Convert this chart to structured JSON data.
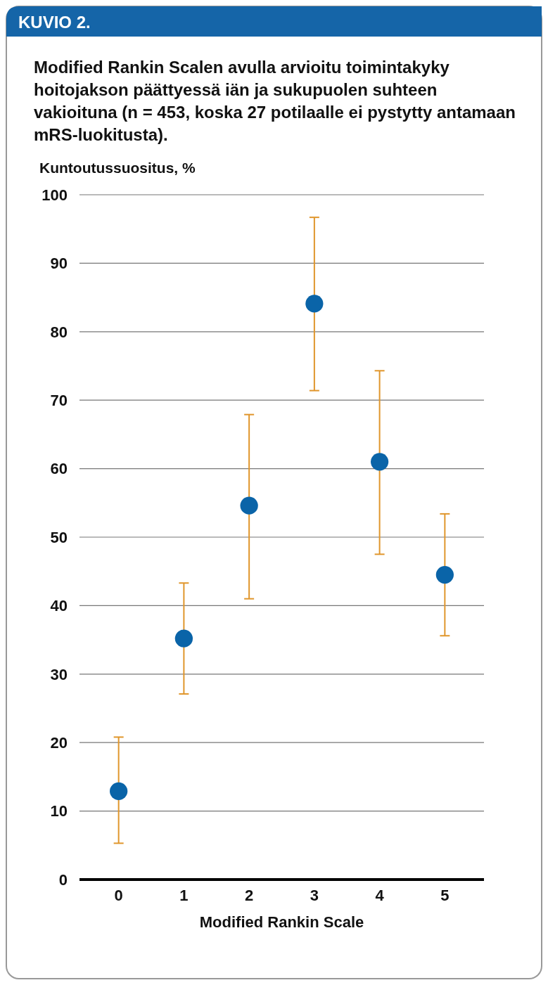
{
  "chart_data": {
    "type": "scatter",
    "title": "KUVIO 2.",
    "subtitle": "Modified Rankin Scalen avulla arvioitu toimintakyky hoitojakson päättyessä iän ja sukupuolen suhteen vakioituna (n = 453, koska 27 potilaalle ei pystytty antamaan mRS-luokitusta).",
    "xlabel": "Modified Rankin Scale",
    "ylabel": "Kuntoutussuositus, %",
    "categories": [
      "0",
      "1",
      "2",
      "3",
      "4",
      "5"
    ],
    "series": [
      {
        "color": "#0a64a8",
        "values": [
          12.9,
          35.2,
          54.6,
          84.1,
          61.0,
          44.5
        ],
        "errors": [
          [
            5.3,
            20.8
          ],
          [
            27.1,
            43.3
          ],
          [
            41.0,
            67.9
          ],
          [
            71.4,
            96.7
          ],
          [
            47.5,
            74.3
          ],
          [
            35.6,
            53.4
          ]
        ]
      }
    ],
    "ylim": [
      0,
      100
    ],
    "yticks": [
      0,
      10,
      20,
      30,
      40,
      50,
      60,
      70,
      80,
      90,
      100
    ],
    "grid": "y",
    "marker": "circle"
  }
}
